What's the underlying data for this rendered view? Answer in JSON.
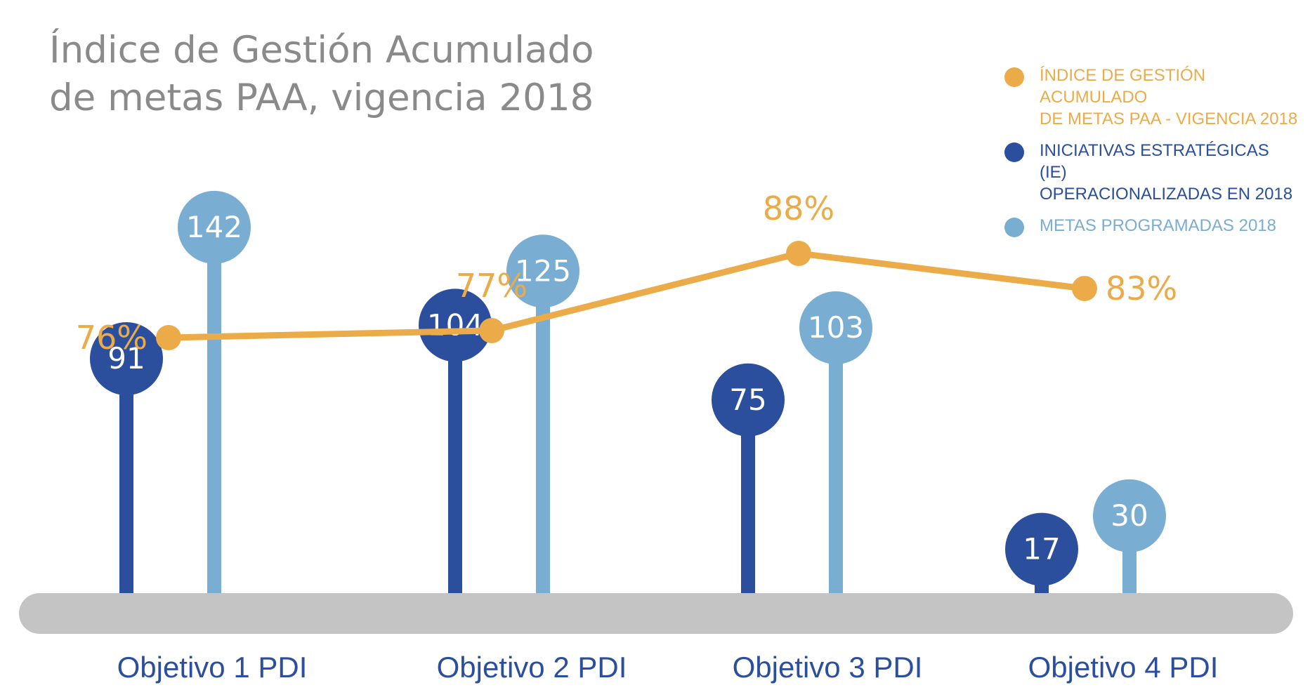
{
  "title": {
    "line1": "Índice de Gestión Acumulado",
    "line2": "de metas PAA, vigencia 2018"
  },
  "legend": [
    {
      "lines": [
        "ÍNDICE DE GESTIÓN ACUMULADO",
        "DE METAS PAA - VIGENCIA 2018"
      ],
      "color": "#EBAB48"
    },
    {
      "lines": [
        "INICIATIVAS ESTRATÉGICAS (IE)",
        "OPERACIONALIZADAS EN 2018"
      ],
      "color": "#2B4E9D"
    },
    {
      "lines": [
        "METAS PROGRAMADAS 2018"
      ],
      "color": "#7AADD2"
    }
  ],
  "chart_data": {
    "type": "bar",
    "categories": [
      "Objetivo 1 PDI",
      "Objetivo 2 PDI",
      "Objetivo 3 PDI",
      "Objetivo 4 PDI"
    ],
    "series": [
      {
        "name": "INICIATIVAS ESTRATÉGICAS (IE) OPERACIONALIZADAS EN 2018",
        "values": [
          91,
          104,
          75,
          17
        ],
        "labels": [
          "91",
          "104",
          "75",
          "17"
        ],
        "color": "#2B4E9D"
      },
      {
        "name": "METAS PROGRAMADAS 2018",
        "values": [
          142,
          125,
          103,
          30
        ],
        "labels": [
          "142",
          "125",
          "103",
          "30"
        ],
        "color": "#7AADD2"
      },
      {
        "name": "ÍNDICE DE GESTIÓN ACUMULADO DE METAS PAA - VIGENCIA 2018",
        "type": "line",
        "values": [
          76,
          77,
          88,
          83
        ],
        "labels": [
          "76%",
          "77%",
          "88%",
          "83%"
        ],
        "color": "#EBAB48"
      }
    ],
    "grid": false,
    "legend_position": "top-right",
    "baseline_color": "#C4C4C4",
    "category_label_color": "#2B4E9D"
  }
}
